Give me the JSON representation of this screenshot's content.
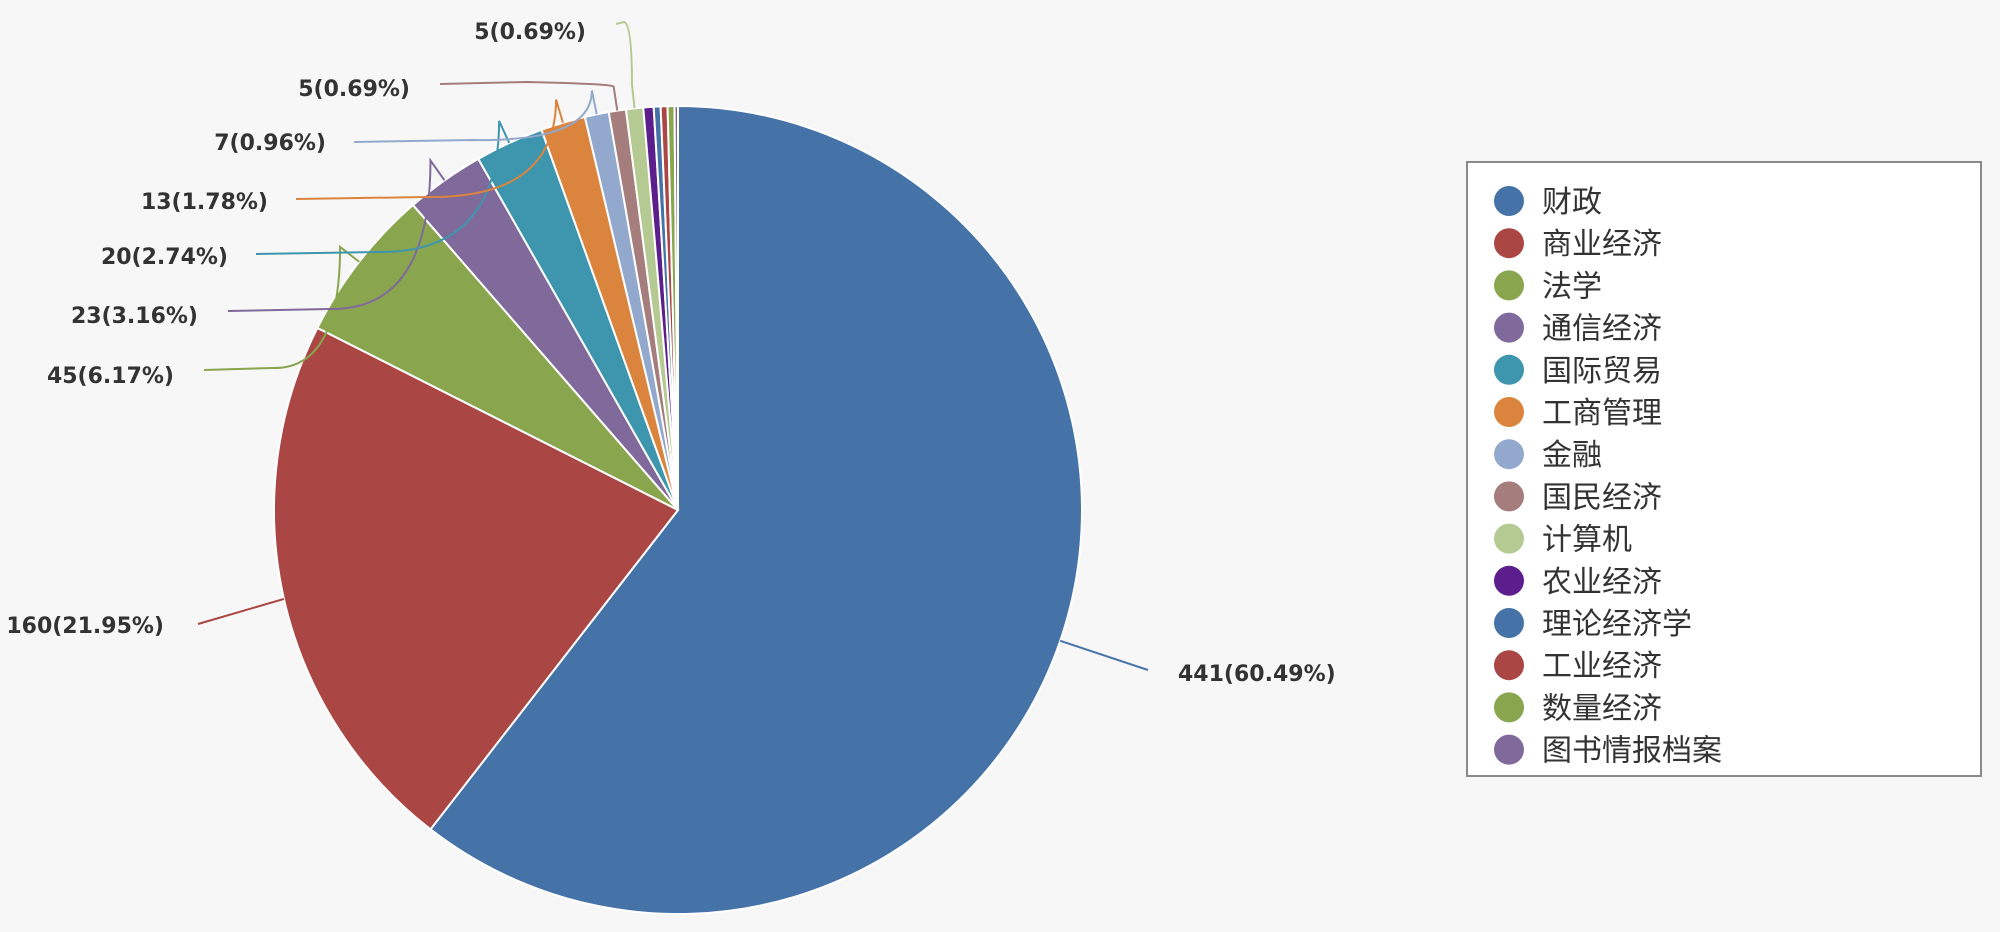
{
  "chart_data": {
    "type": "pie",
    "title": "",
    "categories": [
      "财政",
      "商业经济",
      "法学",
      "通信经济",
      "国际贸易",
      "工商管理",
      "金融",
      "国民经济",
      "计算机",
      "农业经济",
      "理论经济学",
      "工业经济",
      "数量经济",
      "图书情报档案"
    ],
    "values": [
      441,
      160,
      45,
      23,
      20,
      13,
      7,
      5,
      5,
      3,
      2,
      2,
      2,
      1
    ],
    "colors": [
      "#4572a7",
      "#aa4643",
      "#89a54e",
      "#80699b",
      "#3d96ae",
      "#db843d",
      "#92a8cd",
      "#a47d7c",
      "#b5ca92",
      "#5c1e8c",
      "#4572a7",
      "#aa4643",
      "#89a54e",
      "#80699b"
    ],
    "labels": [
      "441(60.49%)",
      "160(21.95%)",
      "45(6.17%)",
      "23(3.16%)",
      "20(2.74%)",
      "13(1.78%)",
      "7(0.96%)",
      "5(0.69%)",
      "5(0.69%)"
    ],
    "legend_position": "right"
  }
}
